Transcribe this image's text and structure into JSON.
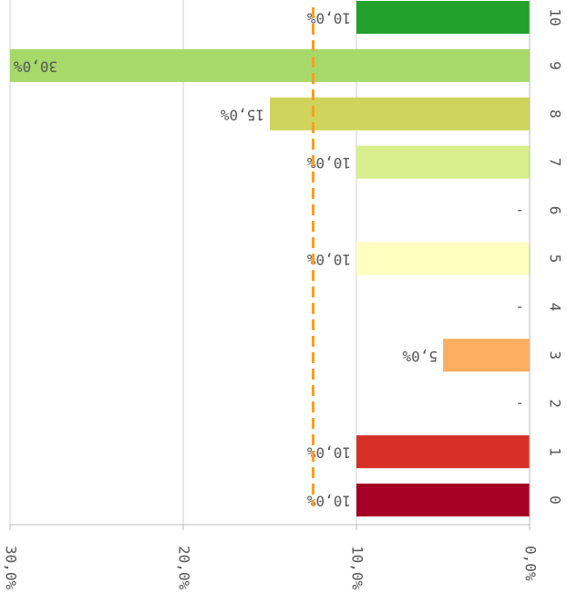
{
  "chart_data": {
    "type": "bar",
    "categories": [
      "0",
      "1",
      "2",
      "3",
      "4",
      "5",
      "6",
      "7",
      "8",
      "9",
      "10"
    ],
    "values": [
      10,
      10,
      0,
      5,
      0,
      10,
      0,
      10,
      15,
      30,
      10
    ],
    "value_labels": [
      "10,0%",
      "10,0%",
      "-",
      "5,0%",
      "-",
      "10,0%",
      "-",
      "10,0%",
      "15,0%",
      "30,0%",
      "10,0%"
    ],
    "colors": [
      "#a50026",
      "#d73027",
      "#fdae61",
      "#fdae61",
      "#ffffbf",
      "#ffffbf",
      "#d9ef8b",
      "#d9ef8b",
      "#cfd45c",
      "#a6d96a",
      "#22a12b"
    ],
    "xlim": [
      0,
      30
    ],
    "xticks": [
      {
        "value": 0,
        "label": "0,0%"
      },
      {
        "value": 10,
        "label": "10,0%"
      },
      {
        "value": 20,
        "label": "20,0%"
      },
      {
        "value": 30,
        "label": "30,0%"
      }
    ],
    "reference_line": 12.5,
    "reference_color": "#f5a02a",
    "grid": true
  }
}
